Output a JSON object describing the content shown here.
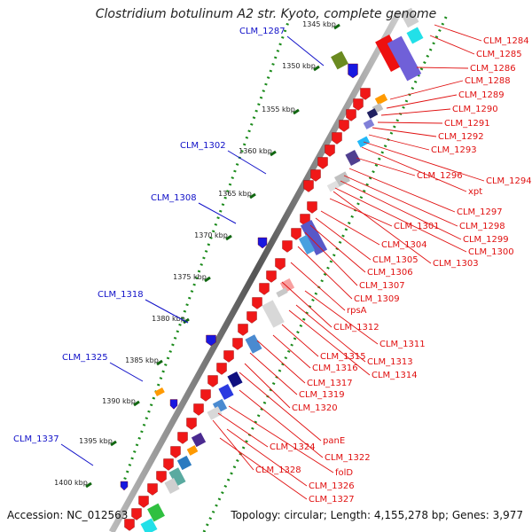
{
  "title": "Clostridium botulinum A2 str. Kyoto, complete genome",
  "footer": {
    "accession": "Accession: NC_012563",
    "topology": "Topology: circular; Length: 4,155,278 bp; Genes: 3,977"
  },
  "scale_labels": [
    "1345 kbp",
    "1350 kbp",
    "1355 kbp",
    "1360 kbp",
    "1365 kbp",
    "1370 kbp",
    "1375 kbp",
    "1380 kbp",
    "1385 kbp",
    "1390 kbp",
    "1395 kbp",
    "1400 kbp"
  ],
  "left_labels": [
    "CLM_1287",
    "CLM_1302",
    "CLM_1308",
    "CLM_1318",
    "CLM_1325",
    "CLM_1337"
  ],
  "right_labels": [
    "CLM_1284",
    "CLM_1285",
    "CLM_1286",
    "CLM_1288",
    "CLM_1289",
    "CLM_1290",
    "CLM_1291",
    "CLM_1292",
    "CLM_1293",
    "CLM_1294",
    "xpt",
    "CLM_1296",
    "CLM_1297",
    "CLM_1298",
    "CLM_1299",
    "CLM_1300",
    "CLM_1301",
    "CLM_1303",
    "CLM_1304",
    "CLM_1305",
    "CLM_1306",
    "CLM_1307",
    "CLM_1309",
    "rpsA",
    "CLM_1312",
    "CLM_1311",
    "CLM_1313",
    "CLM_1314",
    "CLM_1315",
    "CLM_1316",
    "CLM_1317",
    "CLM_1319",
    "CLM_1320",
    "panE",
    "CLM_1324",
    "CLM_1322",
    "folD",
    "CLM_1328",
    "CLM_1326",
    "CLM_1327"
  ],
  "colors": {
    "left_label": "#1010c8",
    "right_label": "#e01010",
    "backbone": "#888888",
    "gc_dots": "#1a8a1a",
    "feature_red": "#f01818"
  }
}
